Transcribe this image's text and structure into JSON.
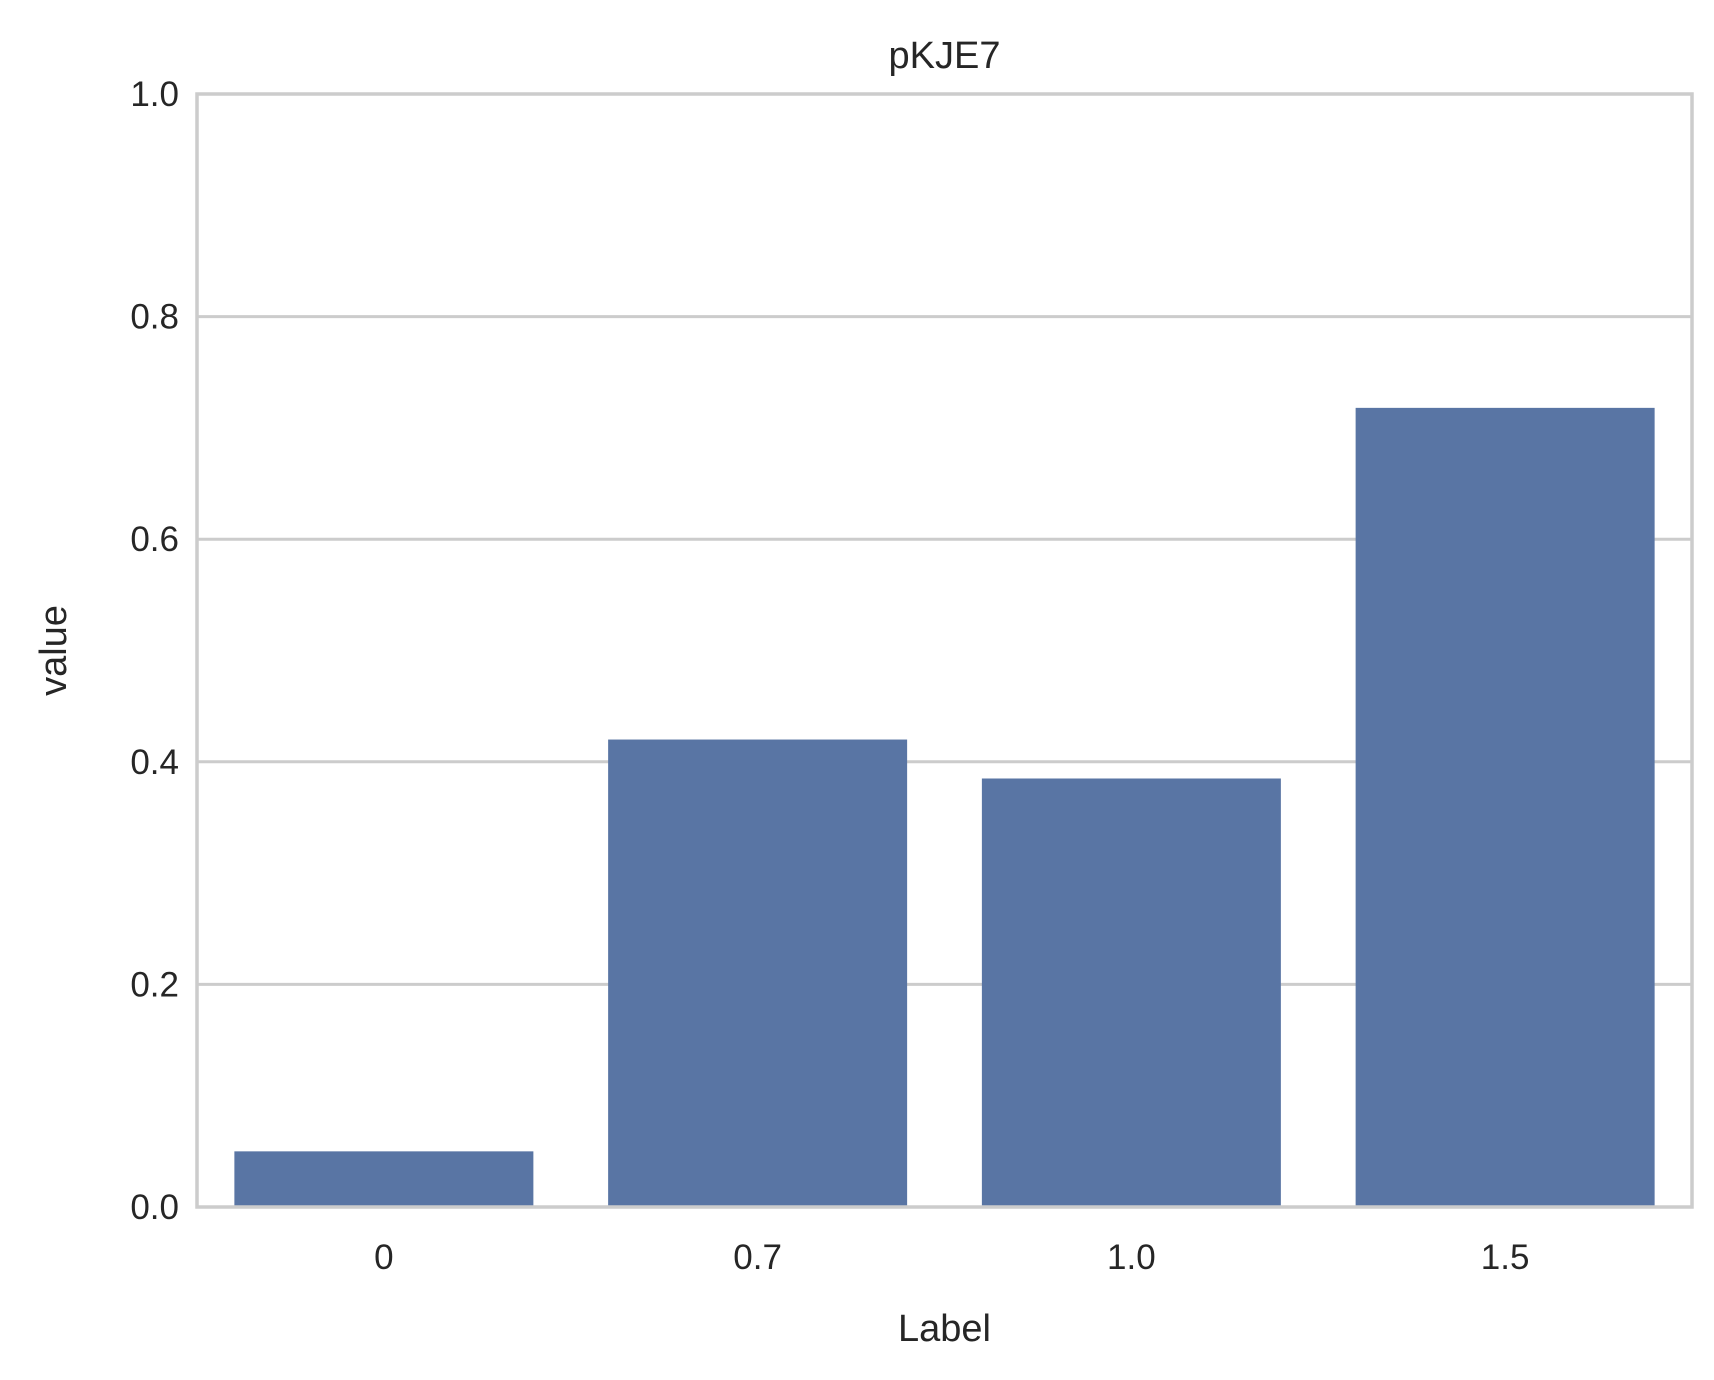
{
  "chart_data": {
    "type": "bar",
    "title": "pKJE7",
    "xlabel": "Label",
    "ylabel": "value",
    "categories": [
      "0",
      "0.7",
      "1.0",
      "1.5"
    ],
    "values": [
      0.05,
      0.42,
      0.385,
      0.718
    ],
    "ylim": [
      0.0,
      1.0
    ],
    "yticks": [
      "0.0",
      "0.2",
      "0.4",
      "0.6",
      "0.8",
      "1.0"
    ],
    "grid": "horizontal",
    "bar_color": "#5975a4"
  }
}
